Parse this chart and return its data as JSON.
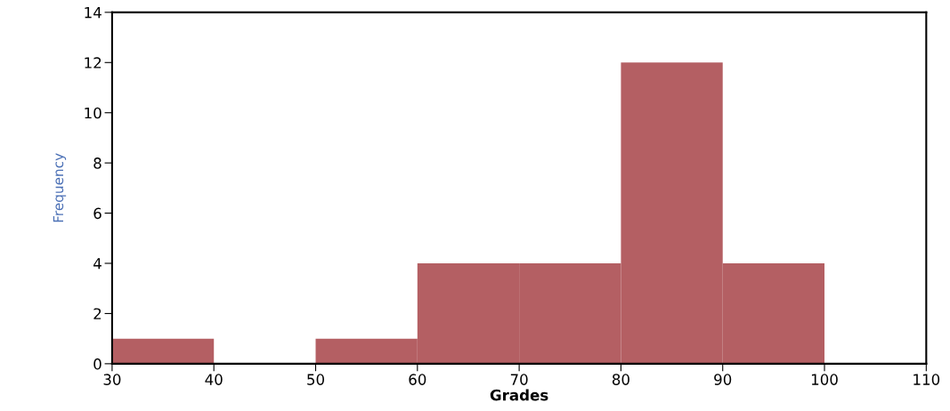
{
  "chart_data": {
    "type": "histogram",
    "xlabel": "Grades",
    "ylabel": "Frequency",
    "bins": [
      30,
      40,
      50,
      60,
      70,
      80,
      90,
      100,
      110
    ],
    "values": [
      1,
      0,
      1,
      4,
      4,
      12,
      4,
      0
    ],
    "color": "#b45f63",
    "xlim": [
      30,
      110
    ],
    "xticks": [
      30,
      40,
      50,
      60,
      70,
      80,
      90,
      100,
      110
    ],
    "ylim": [
      0,
      14
    ],
    "yticks": [
      0,
      2,
      4,
      6,
      8,
      10,
      12,
      14
    ],
    "grid": false
  }
}
